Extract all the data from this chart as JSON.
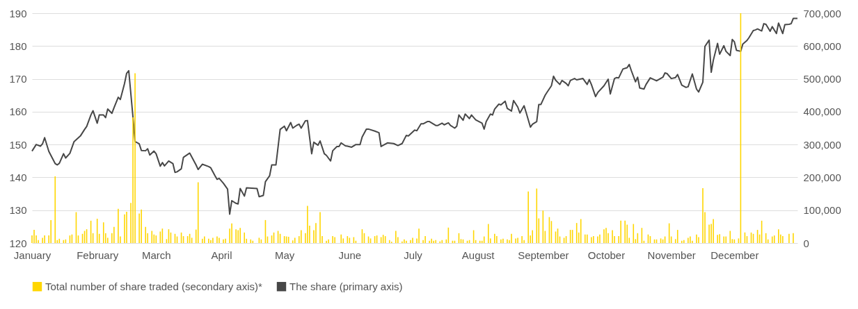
{
  "chart_data": {
    "type": "line",
    "xlim": [
      "--01-01",
      "--12-31"
    ],
    "xticks": [
      {
        "value": "--01-01",
        "label": "January"
      },
      {
        "value": "--02-01",
        "label": "February"
      },
      {
        "value": "--03-01",
        "label": "March"
      },
      {
        "value": "--04-01",
        "label": "April"
      },
      {
        "value": "--05-01",
        "label": "May"
      },
      {
        "value": "--06-01",
        "label": "June"
      },
      {
        "value": "--07-01",
        "label": "July"
      },
      {
        "value": "--08-01",
        "label": "August"
      },
      {
        "value": "--09-01",
        "label": "September"
      },
      {
        "value": "--10-01",
        "label": "October"
      },
      {
        "value": "--11-01",
        "label": "November"
      },
      {
        "value": "--12-01",
        "label": "December"
      }
    ],
    "ylim": [
      120,
      190
    ],
    "yticks": [
      120,
      130,
      140,
      150,
      160,
      170,
      180,
      190
    ],
    "y2lim": [
      0,
      700000
    ],
    "y2ticks": [
      0,
      {
        "value": 100000,
        "label": "100,000"
      },
      {
        "value": 200000,
        "label": "200,000"
      },
      {
        "value": 300000,
        "label": "300,000"
      },
      {
        "value": 400000,
        "label": "400,000"
      },
      {
        "value": 500000,
        "label": "500,000"
      },
      {
        "value": 600000,
        "label": "600,000"
      },
      {
        "value": 700000,
        "label": "700,000"
      }
    ],
    "grid": "y",
    "legend": "bottom",
    "series": [
      {
        "name": "Total number of share traded (secondary axis)*",
        "type": "bar",
        "axis": "y2",
        "color": "#ffd600",
        "x": [
          "--01-01",
          "--01-02",
          "--01-03",
          "--01-04",
          "--01-06",
          "--01-07",
          "--01-09",
          "--01-10",
          "--01-12",
          "--01-13",
          "--01-14",
          "--01-16",
          "--01-17",
          "--01-19",
          "--01-20",
          "--01-22",
          "--01-23",
          "--01-25",
          "--01-26",
          "--01-27",
          "--01-29",
          "--01-30",
          "--02-01",
          "--02-02",
          "--02-04",
          "--02-05",
          "--02-06",
          "--02-08",
          "--02-09",
          "--02-11",
          "--02-12",
          "--02-14",
          "--02-15",
          "--02-17",
          "--02-18",
          "--02-19",
          "--02-21",
          "--02-22",
          "--02-24",
          "--02-25",
          "--02-27",
          "--02-28",
          "--03-01",
          "--03-03",
          "--03-04",
          "--03-06",
          "--03-07",
          "--03-08",
          "--03-10",
          "--03-11",
          "--03-13",
          "--03-14",
          "--03-16",
          "--03-17",
          "--03-18",
          "--03-20",
          "--03-21",
          "--03-23",
          "--03-24",
          "--03-26",
          "--03-27",
          "--03-28",
          "--03-30",
          "--03-31",
          "--04-02",
          "--04-03",
          "--04-05",
          "--04-06",
          "--04-08",
          "--04-09",
          "--04-10",
          "--04-12",
          "--04-13",
          "--04-15",
          "--04-16",
          "--04-19",
          "--04-20",
          "--04-22",
          "--04-23",
          "--04-25",
          "--04-26",
          "--04-28",
          "--04-29",
          "--05-01",
          "--05-02",
          "--05-03",
          "--05-05",
          "--05-06",
          "--05-08",
          "--05-09",
          "--05-11",
          "--05-12",
          "--05-13",
          "--05-15",
          "--05-16",
          "--05-18",
          "--05-19",
          "--05-21",
          "--05-22",
          "--05-24",
          "--05-25",
          "--05-28",
          "--05-29",
          "--05-31",
          "--06-01",
          "--06-03",
          "--06-04",
          "--06-07",
          "--06-08",
          "--06-10",
          "--06-11",
          "--06-13",
          "--06-14",
          "--06-16",
          "--06-17",
          "--06-18",
          "--06-20",
          "--06-21",
          "--06-23",
          "--06-24",
          "--06-26",
          "--06-27",
          "--06-28",
          "--06-30",
          "--07-01",
          "--07-03",
          "--07-04",
          "--07-06",
          "--07-07",
          "--07-09",
          "--07-10",
          "--07-11",
          "--07-12",
          "--07-14",
          "--07-15",
          "--07-17",
          "--07-18",
          "--07-20",
          "--07-21",
          "--07-23",
          "--07-24",
          "--07-25",
          "--07-27",
          "--07-28",
          "--07-30",
          "--07-31",
          "--08-02",
          "--08-03",
          "--08-04",
          "--08-06",
          "--08-07",
          "--08-09",
          "--08-10",
          "--08-12",
          "--08-13",
          "--08-15",
          "--08-16",
          "--08-17",
          "--08-19",
          "--08-20",
          "--08-22",
          "--08-23",
          "--08-25",
          "--08-26",
          "--08-27",
          "--08-29",
          "--08-30",
          "--09-01",
          "--09-02",
          "--09-04",
          "--09-05",
          "--09-07",
          "--09-08",
          "--09-09",
          "--09-11",
          "--09-12",
          "--09-14",
          "--09-15",
          "--09-17",
          "--09-18",
          "--09-19",
          "--09-21",
          "--09-22",
          "--09-24",
          "--09-25",
          "--09-27",
          "--09-28",
          "--09-30",
          "--10-01",
          "--10-02",
          "--10-04",
          "--10-05",
          "--10-07",
          "--10-08",
          "--10-10",
          "--10-11",
          "--10-12",
          "--10-14",
          "--10-15",
          "--10-16",
          "--10-18",
          "--10-19",
          "--10-21",
          "--10-22",
          "--10-24",
          "--10-25",
          "--10-27",
          "--10-28",
          "--10-29",
          "--10-31",
          "--11-01",
          "--11-03",
          "--11-04",
          "--11-06",
          "--11-07",
          "--11-09",
          "--11-10",
          "--11-11",
          "--11-13",
          "--11-14",
          "--11-16",
          "--11-17",
          "--11-19",
          "--11-20",
          "--11-21",
          "--11-23",
          "--11-24",
          "--11-26",
          "--11-27",
          "--11-29",
          "--11-30",
          "--12-01",
          "--12-03",
          "--12-04",
          "--12-06",
          "--12-07",
          "--12-09",
          "--12-10",
          "--12-12",
          "--12-13",
          "--12-14",
          "--12-16",
          "--12-17",
          "--12-19",
          "--12-20",
          "--12-22",
          "--12-23",
          "--12-24",
          "--12-27",
          "--12-29"
        ],
        "values": [
          23000,
          40000,
          23000,
          9000,
          16000,
          23000,
          23000,
          70000,
          203000,
          9000,
          13000,
          9000,
          11000,
          23000,
          26000,
          94000,
          23000,
          28000,
          37000,
          42000,
          68000,
          30000,
          74000,
          28000,
          63000,
          30000,
          16000,
          30000,
          49000,
          104000,
          20000,
          87000,
          95000,
          122000,
          383000,
          517000,
          90000,
          102000,
          49000,
          30000,
          37000,
          26000,
          23000,
          35000,
          44000,
          12000,
          42000,
          32000,
          28000,
          20000,
          32000,
          21000,
          21000,
          28000,
          16000,
          41000,
          185000,
          13000,
          20000,
          13000,
          9000,
          16000,
          20000,
          16000,
          11000,
          13000,
          44000,
          60000,
          42000,
          39000,
          46000,
          32000,
          13000,
          11000,
          7000,
          16000,
          11000,
          70000,
          20000,
          23000,
          32000,
          37000,
          28000,
          21000,
          20000,
          19000,
          8000,
          16000,
          21000,
          39000,
          30000,
          113000,
          53000,
          39000,
          61000,
          94000,
          21000,
          7000,
          11000,
          21000,
          18000,
          26000,
          14000,
          21000,
          16000,
          18000,
          7000,
          42000,
          30000,
          20000,
          14000,
          21000,
          23000,
          18000,
          25000,
          21000,
          9000,
          4000,
          37000,
          18000,
          5000,
          11000,
          7000,
          9000,
          16000,
          14000,
          44000,
          9000,
          21000,
          7000,
          13000,
          7000,
          9000,
          5000,
          9000,
          11000,
          47000,
          7000,
          7000,
          30000,
          12000,
          11000,
          7000,
          9000,
          39000,
          9000,
          7000,
          7000,
          20000,
          58000,
          14000,
          28000,
          21000,
          11000,
          13000,
          11000,
          9000,
          28000,
          14000,
          16000,
          21000,
          9000,
          157000,
          23000,
          39000,
          166000,
          75000,
          99000,
          37000,
          79000,
          67000,
          35000,
          44000,
          20000,
          16000,
          21000,
          40000,
          40000,
          61000,
          32000,
          73000,
          26000,
          26000,
          18000,
          21000,
          20000,
          26000,
          42000,
          46000,
          30000,
          39000,
          21000,
          21000,
          68000,
          68000,
          56000,
          16000,
          58000,
          12000,
          30000,
          46000,
          7000,
          26000,
          21000,
          11000,
          11000,
          14000,
          11000,
          20000,
          60000,
          20000,
          12000,
          40000,
          7000,
          9000,
          16000,
          20000,
          7000,
          26000,
          18000,
          167000,
          94000,
          56000,
          58000,
          73000,
          25000,
          27000,
          20000,
          20000,
          37000,
          12000,
          11000,
          14000,
          700000,
          32000,
          21000,
          32000,
          28000,
          40000,
          26000,
          68000,
          30000,
          11000,
          20000,
          23000,
          42000,
          26000,
          21000,
          28000,
          30000
        ]
      },
      {
        "name": "The share (primary axis)",
        "color": "#474747",
        "x": [
          "--01-01",
          "--01-03",
          "--01-05",
          "--01-06",
          "--01-07",
          "--01-09",
          "--01-12",
          "--01-13",
          "--01-14",
          "--01-16",
          "--01-17",
          "--01-19",
          "--01-21",
          "--01-24",
          "--01-26",
          "--01-27",
          "--01-29",
          "--01-30",
          "--02-01",
          "--02-02",
          "--02-04",
          "--02-05",
          "--02-06",
          "--02-08",
          "--02-09",
          "--02-11",
          "--02-12",
          "--02-14",
          "--02-15",
          "--02-16",
          "--02-18",
          "--02-19",
          "--02-21",
          "--02-22",
          "--02-24",
          "--02-25",
          "--02-26",
          "--02-28",
          "--03-01",
          "--03-03",
          "--03-04",
          "--03-05",
          "--03-07",
          "--03-09",
          "--03-10",
          "--03-11",
          "--03-13",
          "--03-14",
          "--03-17",
          "--03-20",
          "--03-21",
          "--03-23",
          "--03-26",
          "--03-27",
          "--03-29",
          "--03-30",
          "--03-31",
          "--04-02",
          "--04-04",
          "--04-05",
          "--04-06",
          "--04-08",
          "--04-09",
          "--04-10",
          "--04-12",
          "--04-13",
          "--04-18",
          "--04-19",
          "--04-21",
          "--04-22",
          "--04-24",
          "--04-25",
          "--04-27",
          "--04-29",
          "--05-01",
          "--05-02",
          "--05-04",
          "--05-05",
          "--05-07",
          "--05-08",
          "--05-09",
          "--05-11",
          "--05-12",
          "--05-14",
          "--05-15",
          "--05-17",
          "--05-18",
          "--05-20",
          "--05-21",
          "--05-23",
          "--05-24",
          "--05-26",
          "--05-27",
          "--05-28",
          "--05-30",
          "--05-31",
          "--06-02",
          "--06-04",
          "--06-06",
          "--06-07",
          "--06-09",
          "--06-10",
          "--06-13",
          "--06-15",
          "--06-16",
          "--06-19",
          "--06-22",
          "--06-24",
          "--06-26",
          "--06-28",
          "--06-29",
          "--07-02",
          "--07-03",
          "--07-05",
          "--07-06",
          "--07-08",
          "--07-09",
          "--07-12",
          "--07-13",
          "--07-15",
          "--07-16",
          "--07-18",
          "--07-19",
          "--07-21",
          "--07-22",
          "--07-23",
          "--07-25",
          "--07-26",
          "--07-28",
          "--07-29",
          "--07-31",
          "--08-03",
          "--08-04",
          "--08-05",
          "--08-07",
          "--08-08",
          "--08-09",
          "--08-11",
          "--08-12",
          "--08-14",
          "--08-15",
          "--08-17",
          "--08-18",
          "--08-20",
          "--08-21",
          "--08-23",
          "--08-24",
          "--08-26",
          "--08-27",
          "--08-29",
          "--08-30",
          "--08-31",
          "--09-02",
          "--09-03",
          "--09-05",
          "--09-06",
          "--09-07",
          "--09-09",
          "--09-10",
          "--09-12",
          "--09-13",
          "--09-14",
          "--09-16",
          "--09-17",
          "--09-20",
          "--09-22",
          "--09-23",
          "--09-24",
          "--09-26",
          "--09-27",
          "--09-30",
          "--10-02",
          "--10-03",
          "--10-05",
          "--10-06",
          "--10-07",
          "--10-09",
          "--10-11",
          "--10-12",
          "--10-13",
          "--10-15",
          "--10-16",
          "--10-17",
          "--10-19",
          "--10-20",
          "--10-22",
          "--10-25",
          "--10-28",
          "--10-29",
          "--10-30",
          "--11-01",
          "--11-03",
          "--11-04",
          "--11-06",
          "--11-08",
          "--11-09",
          "--11-11",
          "--11-13",
          "--11-14",
          "--11-16",
          "--11-17",
          "--11-19",
          "--11-20",
          "--11-21",
          "--11-23",
          "--11-24",
          "--11-26",
          "--11-27",
          "--11-29",
          "--11-30",
          "--12-01",
          "--12-02",
          "--12-04",
          "--12-05",
          "--12-07",
          "--12-08",
          "--12-10",
          "--12-11",
          "--12-12",
          "--12-14",
          "--12-15",
          "--12-16",
          "--12-18",
          "--12-19",
          "--12-21",
          "--12-22",
          "--12-24",
          "--12-25",
          "--12-27",
          "--12-28",
          "--12-29",
          "--12-31"
        ],
        "values": [
          148.0,
          150.0,
          149.5,
          150.2,
          152.1,
          147.9,
          144.2,
          143.8,
          144.3,
          147.2,
          145.9,
          147.3,
          150.9,
          152.6,
          154.6,
          155.5,
          159.0,
          160.3,
          156.5,
          159.0,
          159.0,
          158.2,
          160.8,
          159.5,
          161.2,
          164.4,
          163.7,
          168.6,
          171.7,
          172.5,
          158.4,
          150.9,
          150.2,
          148.2,
          148.1,
          148.7,
          146.8,
          148.0,
          147.2,
          143.4,
          144.5,
          143.5,
          145.0,
          144.2,
          141.5,
          141.7,
          142.6,
          146.1,
          147.4,
          143.8,
          142.4,
          144.0,
          143.3,
          142.9,
          140.5,
          139.4,
          139.7,
          138.2,
          136.4,
          128.8,
          132.9,
          132.1,
          131.9,
          136.6,
          134.3,
          136.8,
          136.6,
          134.1,
          134.5,
          138.7,
          140.5,
          143.8,
          143.8,
          154.6,
          155.6,
          154.2,
          156.7,
          155.0,
          155.9,
          156.2,
          155.0,
          157.2,
          157.3,
          147.2,
          150.7,
          149.8,
          151.1,
          147.2,
          146.7,
          145.0,
          148.1,
          149.4,
          149.4,
          150.5,
          149.6,
          149.5,
          149.2,
          150.0,
          150.0,
          152.3,
          154.7,
          154.7,
          154.1,
          153.6,
          149.4,
          150.5,
          150.3,
          149.7,
          150.3,
          152.8,
          152.6,
          154.4,
          154.2,
          156.3,
          156.3,
          157.0,
          157.0,
          155.8,
          155.8,
          156.5,
          156.0,
          156.6,
          155.8,
          155.0,
          155.6,
          159.0,
          157.4,
          159.3,
          157.9,
          159.0,
          157.5,
          156.5,
          154.7,
          157.0,
          159.3,
          159.0,
          160.8,
          162.3,
          162.1,
          163.2,
          161.0,
          160.2,
          163.4,
          161.4,
          159.6,
          161.8,
          159.7,
          155.3,
          156.2,
          157.0,
          162.2,
          162.2,
          165.0,
          166.0,
          167.9,
          170.8,
          169.6,
          168.3,
          169.5,
          168.6,
          167.9,
          169.5,
          170.1,
          169.7,
          170.1,
          168.3,
          169.8,
          168.3,
          164.6,
          165.8,
          167.9,
          169.9,
          165.4,
          170.1,
          170.4,
          170.3,
          173.0,
          173.4,
          174.4,
          172.5,
          169.1,
          170.5,
          167.2,
          166.9,
          168.3,
          170.3,
          169.4,
          170.5,
          171.8,
          171.6,
          170.1,
          170.4,
          171.3,
          168.1,
          167.4,
          167.6,
          171.5,
          166.9,
          166.0,
          169.0,
          179.9,
          181.8,
          172.0,
          175.7,
          180.8,
          177.5,
          180.1,
          178.4,
          177.1,
          182.0,
          181.3,
          178.7,
          178.4,
          180.6,
          181.7,
          182.6,
          184.7,
          184.9,
          185.2,
          184.6,
          186.8,
          186.6,
          184.5,
          185.9,
          183.8,
          187.0,
          183.8,
          186.5,
          186.6,
          186.8,
          188.4,
          188.4
        ]
      }
    ]
  }
}
